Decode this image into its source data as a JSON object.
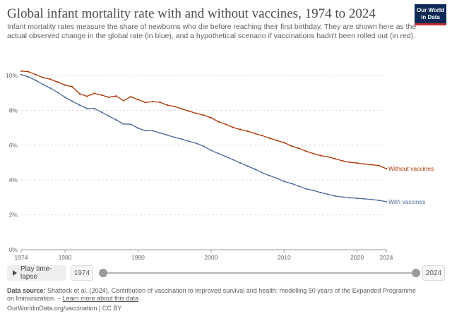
{
  "header": {
    "title": "Global infant mortality rate with and without vaccines, 1974 to 2024",
    "subtitle": "Infant mortality rates measure the share of newborns who die before reaching their first birthday. They are shown here as the actual observed change in the global rate (in blue), and a hypothetical scenario if vaccinations hadn't been rolled out (in red).",
    "logo_line1": "Our World",
    "logo_line2": "in Data"
  },
  "chart_data": {
    "type": "line",
    "ylim": [
      0,
      10
    ],
    "xlim": [
      1974,
      2024
    ],
    "y_ticks": [
      "0%",
      "2%",
      "4%",
      "6%",
      "8%",
      "10%"
    ],
    "y_tick_values": [
      0,
      2,
      4,
      6,
      8,
      10
    ],
    "x_ticks": [
      "1974",
      "1980",
      "1990",
      "2000",
      "2010",
      "2020",
      "2024"
    ],
    "x_tick_values": [
      1974,
      1980,
      1990,
      2000,
      2010,
      2020,
      2024
    ],
    "grid": "horizontal dashed",
    "legend": "end-of-line labels",
    "series": [
      {
        "name": "Without vaccines",
        "color": "#b13507",
        "x": [
          1974,
          1975,
          1976,
          1977,
          1978,
          1979,
          1980,
          1981,
          1982,
          1983,
          1984,
          1985,
          1986,
          1987,
          1988,
          1989,
          1990,
          1991,
          1992,
          1993,
          1994,
          1995,
          1996,
          1997,
          1998,
          1999,
          2000,
          2001,
          2002,
          2003,
          2004,
          2005,
          2006,
          2007,
          2008,
          2009,
          2010,
          2011,
          2012,
          2013,
          2014,
          2015,
          2016,
          2017,
          2018,
          2019,
          2020,
          2021,
          2022,
          2023,
          2024
        ],
        "values": [
          10.25,
          10.22,
          10.05,
          9.88,
          9.78,
          9.62,
          9.45,
          9.35,
          8.95,
          8.8,
          8.97,
          8.88,
          8.75,
          8.82,
          8.55,
          8.78,
          8.62,
          8.45,
          8.5,
          8.46,
          8.3,
          8.22,
          8.08,
          7.95,
          7.82,
          7.72,
          7.57,
          7.35,
          7.2,
          7.02,
          6.9,
          6.8,
          6.67,
          6.55,
          6.4,
          6.27,
          6.15,
          5.95,
          5.82,
          5.65,
          5.52,
          5.4,
          5.33,
          5.22,
          5.1,
          5.02,
          4.97,
          4.92,
          4.88,
          4.82,
          4.65
        ]
      },
      {
        "name": "With vaccines",
        "color": "#4c6a9c",
        "x": [
          1974,
          1975,
          1976,
          1977,
          1978,
          1979,
          1980,
          1981,
          1982,
          1983,
          1984,
          1985,
          1986,
          1987,
          1988,
          1989,
          1990,
          1991,
          1992,
          1993,
          1994,
          1995,
          1996,
          1997,
          1998,
          1999,
          2000,
          2001,
          2002,
          2003,
          2004,
          2005,
          2006,
          2007,
          2008,
          2009,
          2010,
          2011,
          2012,
          2013,
          2014,
          2015,
          2016,
          2017,
          2018,
          2019,
          2020,
          2021,
          2022,
          2023,
          2024
        ],
        "values": [
          10.05,
          9.92,
          9.72,
          9.48,
          9.27,
          9.03,
          8.75,
          8.52,
          8.3,
          8.1,
          8.1,
          7.9,
          7.67,
          7.45,
          7.22,
          7.2,
          6.98,
          6.83,
          6.83,
          6.7,
          6.58,
          6.45,
          6.35,
          6.22,
          6.1,
          5.93,
          5.7,
          5.52,
          5.35,
          5.17,
          4.98,
          4.8,
          4.62,
          4.42,
          4.25,
          4.1,
          3.92,
          3.8,
          3.65,
          3.5,
          3.4,
          3.28,
          3.18,
          3.08,
          3.02,
          2.98,
          2.95,
          2.92,
          2.88,
          2.83,
          2.76
        ]
      }
    ]
  },
  "controls": {
    "play_label": "Play time-lapse",
    "start_year": "1974",
    "end_year": "2024",
    "slider_start_fraction": 0,
    "slider_end_fraction": 1
  },
  "footer": {
    "source_label": "Data source:",
    "source_text": "Shattock et al. (2024). Contribution of vaccination to improved survival and health: modelling 50 years of the Expanded Programme on Immunization.",
    "learn_more": "Learn more about this data",
    "url_license": "OurWorldinData.org/vaccination | CC BY"
  }
}
